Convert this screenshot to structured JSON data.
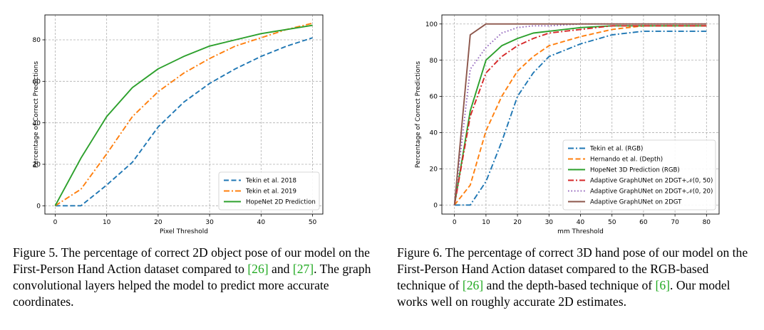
{
  "chart_data": [
    {
      "type": "line",
      "xlabel": "Pixel Threshold",
      "ylabel": "Percentage of Correct Predictions",
      "xlim": [
        -2,
        52
      ],
      "ylim": [
        -4,
        92
      ],
      "xticks": [
        0,
        10,
        20,
        30,
        40,
        50
      ],
      "yticks": [
        0,
        20,
        40,
        60,
        80
      ],
      "grid": true,
      "legend_position": "lower-right",
      "series": [
        {
          "name": "Tekin et al. 2018",
          "color": "#1f77b4",
          "dash": "dashed",
          "x": [
            0,
            5,
            10,
            15,
            20,
            25,
            30,
            35,
            40,
            45,
            50
          ],
          "y": [
            0,
            0,
            10,
            21,
            38,
            50,
            59,
            66,
            72,
            77,
            81
          ]
        },
        {
          "name": "Tekin et al. 2019",
          "color": "#ff7f0e",
          "dash": "dashdot",
          "x": [
            0,
            5,
            10,
            15,
            20,
            25,
            30,
            35,
            40,
            45,
            50
          ],
          "y": [
            0,
            8,
            25,
            43,
            55,
            64,
            71,
            77,
            81,
            85,
            88
          ]
        },
        {
          "name": "HopeNet 2D Prediction",
          "color": "#2ca02c",
          "dash": "solid",
          "x": [
            0,
            5,
            10,
            15,
            20,
            25,
            30,
            35,
            40,
            45,
            50
          ],
          "y": [
            0,
            23,
            43,
            57,
            66,
            72,
            77,
            80,
            83,
            85,
            87
          ]
        }
      ]
    },
    {
      "type": "line",
      "xlabel": "mm Threshold",
      "ylabel": "Percentage of Correct Predictions",
      "xlim": [
        -4,
        84
      ],
      "ylim": [
        -5,
        105
      ],
      "xticks": [
        0,
        10,
        20,
        30,
        40,
        50,
        60,
        70,
        80
      ],
      "yticks": [
        0,
        20,
        40,
        60,
        80,
        100
      ],
      "grid": true,
      "legend_position": "lower-right",
      "series": [
        {
          "name": "Tekin et al. (RGB)",
          "color": "#1f77b4",
          "dash": "dashdot",
          "x": [
            0,
            5,
            10,
            15,
            20,
            25,
            30,
            40,
            50,
            60,
            70,
            80
          ],
          "y": [
            0,
            0,
            13,
            35,
            60,
            73,
            82,
            89,
            94,
            96,
            96,
            96
          ]
        },
        {
          "name": "Hernando et al. (Depth)",
          "color": "#ff7f0e",
          "dash": "dashed",
          "x": [
            0,
            5,
            10,
            15,
            20,
            25,
            30,
            40,
            50,
            60,
            70,
            80
          ],
          "y": [
            0,
            11,
            41,
            60,
            74,
            82,
            88,
            93,
            97,
            99,
            99,
            99
          ]
        },
        {
          "name": "HopeNet 3D Prediction (RGB)",
          "color": "#2ca02c",
          "dash": "solid",
          "x": [
            0,
            5,
            10,
            15,
            20,
            25,
            30,
            40,
            50,
            60,
            70,
            80
          ],
          "y": [
            0,
            52,
            80,
            88,
            92,
            95,
            96,
            98,
            99,
            99,
            99,
            99
          ]
        },
        {
          "name": "Adaptive GraphUNet on 2DGT+𝒩(0, 50)",
          "color": "#d62728",
          "dash": "dashdot",
          "x": [
            0,
            5,
            10,
            15,
            20,
            25,
            30,
            40,
            50,
            60,
            70,
            80
          ],
          "y": [
            0,
            49,
            73,
            82,
            88,
            92,
            95,
            97,
            99,
            99,
            99,
            99
          ]
        },
        {
          "name": "Adaptive GraphUNet on 2DGT+𝒩(0, 20)",
          "color": "#9467bd",
          "dash": "dotted",
          "x": [
            0,
            5,
            10,
            15,
            20,
            25,
            30,
            40,
            50,
            60,
            70,
            80
          ],
          "y": [
            0,
            75,
            87,
            95,
            98,
            99,
            99,
            100,
            100,
            100,
            100,
            100
          ]
        },
        {
          "name": "Adaptive GraphUNet on 2DGT",
          "color": "#8c564b",
          "dash": "solid",
          "x": [
            0,
            5,
            10,
            15,
            20,
            25,
            30,
            40,
            50,
            60,
            70,
            80
          ],
          "y": [
            0,
            94,
            100,
            100,
            100,
            100,
            100,
            100,
            100,
            100,
            100,
            100
          ]
        }
      ]
    }
  ],
  "captions": [
    {
      "prefix": "Figure 5. The percentage of correct 2D object pose of our model on the First-Person Hand Action dataset compared to ",
      "ref1": "[26]",
      "mid": " and ",
      "ref2": "[27]",
      "suffix": ". The graph convolutional layers helped the model to predict more accurate coordinates."
    },
    {
      "prefix": "Figure 6. The percentage of correct 3D hand pose of our model on the First-Person Hand Action dataset compared to the RGB-based technique of ",
      "ref1": "[26]",
      "mid": " and the depth-based technique of ",
      "ref2": "[6]",
      "suffix": ". Our model works well on roughly accurate 2D estimates."
    }
  ]
}
